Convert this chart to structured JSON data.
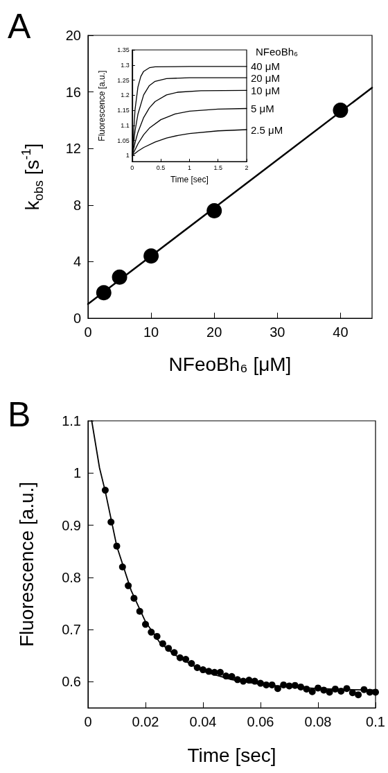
{
  "chart_data": [
    {
      "type": "scatter",
      "title": "A",
      "xlabel": "NFeoBh₆ [μM]",
      "ylabel": "k$_{obs}$ [s$^{-1}$]",
      "xlim": [
        0,
        45
      ],
      "xticks": [
        0,
        10,
        20,
        30,
        40
      ],
      "ylim": [
        0,
        20
      ],
      "yticks": [
        0,
        4,
        8,
        12,
        16,
        20
      ],
      "grid": false,
      "series": [
        {
          "type": "scatter",
          "color": "#000000",
          "marker": "circle",
          "x": [
            2.5,
            5,
            10,
            20,
            40
          ],
          "values": [
            1.8,
            2.9,
            4.4,
            7.6,
            14.7
          ]
        },
        {
          "type": "line",
          "color": "#000000",
          "marker": "none",
          "x": [
            0,
            45
          ],
          "values": [
            1.0,
            16.3
          ]
        }
      ]
    },
    {
      "type": "line",
      "xlabel": "Time [sec]",
      "ylabel": "Fluorescence [a.u.]",
      "legend_title": "NFeoBh₆",
      "xlim": [
        0,
        2
      ],
      "xticks": [
        0,
        0.5,
        1,
        1.5,
        2
      ],
      "ylim": [
        0.98,
        1.35
      ],
      "yticks": [
        1,
        1.05,
        1.1,
        1.15,
        1.2,
        1.25,
        1.3,
        1.35
      ],
      "grid": false,
      "marker": "none",
      "series": [
        {
          "name": "40 μM",
          "color": "#000000",
          "x": [
            0,
            0.05,
            0.1,
            0.15,
            0.2,
            0.3,
            0.4,
            1,
            2
          ],
          "values": [
            1,
            1.153,
            1.227,
            1.262,
            1.279,
            1.291,
            1.294,
            1.295,
            1.295
          ]
        },
        {
          "name": "20 μM",
          "color": "#000000",
          "x": [
            0,
            0.05,
            0.1,
            0.2,
            0.3,
            0.4,
            0.6,
            1,
            2
          ],
          "values": [
            1,
            1.082,
            1.137,
            1.201,
            1.232,
            1.246,
            1.255,
            1.258,
            1.258
          ]
        },
        {
          "name": "10 μM",
          "color": "#000000",
          "x": [
            0,
            0.05,
            0.1,
            0.2,
            0.3,
            0.4,
            0.6,
            0.8,
            1.2,
            2
          ],
          "values": [
            1,
            1.043,
            1.077,
            1.126,
            1.158,
            1.179,
            1.201,
            1.21,
            1.215,
            1.216
          ]
        },
        {
          "name": "5 μM",
          "color": "#000000",
          "x": [
            0,
            0.1,
            0.2,
            0.3,
            0.5,
            0.75,
            1,
            1.5,
            2
          ],
          "values": [
            1,
            1.039,
            1.069,
            1.091,
            1.119,
            1.138,
            1.147,
            1.154,
            1.156
          ]
        },
        {
          "name": "2.5 μM",
          "color": "#000000",
          "x": [
            0,
            0.1,
            0.2,
            0.4,
            0.6,
            0.8,
            1,
            1.5,
            2
          ],
          "values": [
            1,
            1.015,
            1.027,
            1.045,
            1.058,
            1.067,
            1.073,
            1.082,
            1.086
          ]
        }
      ]
    },
    {
      "type": "scatter",
      "title": "B",
      "xlabel": "Time [sec]",
      "ylabel": "Fluorescence [a.u.]",
      "xlim": [
        0,
        0.1
      ],
      "xticks": [
        0,
        0.02,
        0.04,
        0.06,
        0.08,
        0.1
      ],
      "ylim": [
        0.55,
        1.1
      ],
      "yticks": [
        0.6,
        0.7,
        0.8,
        0.9,
        1,
        1.1
      ],
      "grid": false,
      "series": [
        {
          "type": "scatter",
          "color": "#000000",
          "marker": "circle",
          "x": [
            0.006,
            0.008,
            0.01,
            0.012,
            0.014,
            0.016,
            0.018,
            0.02,
            0.022,
            0.024,
            0.026,
            0.028,
            0.03,
            0.032,
            0.034,
            0.036,
            0.038,
            0.04,
            0.042,
            0.044,
            0.046,
            0.048,
            0.05,
            0.052,
            0.054,
            0.056,
            0.058,
            0.06,
            0.062,
            0.064,
            0.066,
            0.068,
            0.07,
            0.072,
            0.074,
            0.076,
            0.078,
            0.08,
            0.082,
            0.084,
            0.086,
            0.088,
            0.09,
            0.092,
            0.094,
            0.096,
            0.098,
            0.1
          ],
          "values": [
            0.967,
            0.906,
            0.86,
            0.82,
            0.784,
            0.76,
            0.735,
            0.71,
            0.695,
            0.687,
            0.673,
            0.664,
            0.656,
            0.646,
            0.643,
            0.635,
            0.627,
            0.623,
            0.62,
            0.618,
            0.618,
            0.611,
            0.61,
            0.604,
            0.601,
            0.603,
            0.601,
            0.597,
            0.594,
            0.594,
            0.587,
            0.594,
            0.592,
            0.593,
            0.59,
            0.586,
            0.581,
            0.588,
            0.584,
            0.58,
            0.586,
            0.582,
            0.587,
            0.579,
            0.575,
            0.585,
            0.58,
            0.58
          ]
        },
        {
          "type": "line",
          "color": "#000000",
          "marker": "none",
          "x": [
            0.0013,
            0.004,
            0.006,
            0.01,
            0.015,
            0.02,
            0.025,
            0.03,
            0.04,
            0.05,
            0.06,
            0.07,
            0.08,
            0.09,
            0.1
          ],
          "values": [
            1.1,
            1.01,
            0.965,
            0.86,
            0.775,
            0.715,
            0.675,
            0.652,
            0.62,
            0.604,
            0.595,
            0.59,
            0.587,
            0.585,
            0.584
          ]
        }
      ]
    }
  ]
}
